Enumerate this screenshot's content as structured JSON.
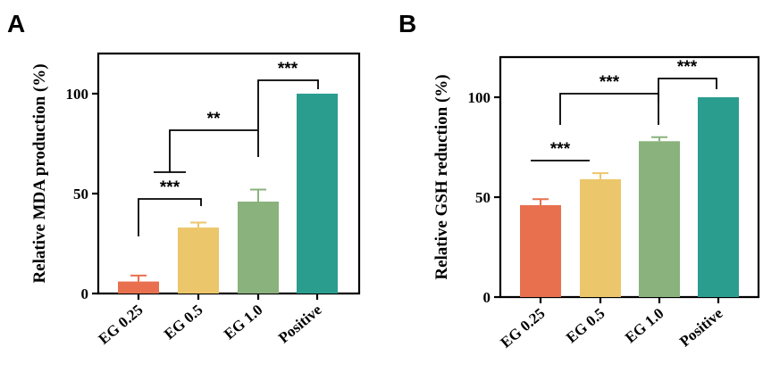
{
  "chart_data": [
    {
      "panel": "A",
      "type": "bar",
      "ylabel": "Relative MDA production (%)",
      "ylim": [
        0,
        120
      ],
      "yticks": [
        0,
        50,
        100
      ],
      "categories": [
        "EG 0.25",
        "EG 0.5",
        "EG 1.0",
        "Positive"
      ],
      "values": [
        6,
        33,
        46,
        100
      ],
      "errors": [
        3,
        2.5,
        6,
        0
      ],
      "colors": [
        "#e8704f",
        "#ecc66a",
        "#89b27c",
        "#2a9d8f"
      ],
      "significance": [
        {
          "label": "***",
          "from": 0,
          "to": 1
        },
        {
          "label": "**",
          "from_group": [
            0,
            1
          ],
          "to": 2
        },
        {
          "label": "***",
          "from": 2,
          "to": 3
        }
      ]
    },
    {
      "panel": "B",
      "type": "bar",
      "ylabel": "Relative GSH reduction (%)",
      "ylim": [
        0,
        120
      ],
      "yticks": [
        0,
        50,
        100
      ],
      "categories": [
        "EG 0.25",
        "EG 0.5",
        "EG 1.0",
        "Positive"
      ],
      "values": [
        46,
        59,
        78,
        100
      ],
      "errors": [
        3,
        3,
        2,
        0
      ],
      "colors": [
        "#e8704f",
        "#ecc66a",
        "#89b27c",
        "#2a9d8f"
      ],
      "significance": [
        {
          "label": "***",
          "from": 0,
          "to": 1
        },
        {
          "label": "***",
          "from": 1,
          "to": 2
        },
        {
          "label": "***",
          "from": 2,
          "to": 3
        }
      ]
    }
  ]
}
